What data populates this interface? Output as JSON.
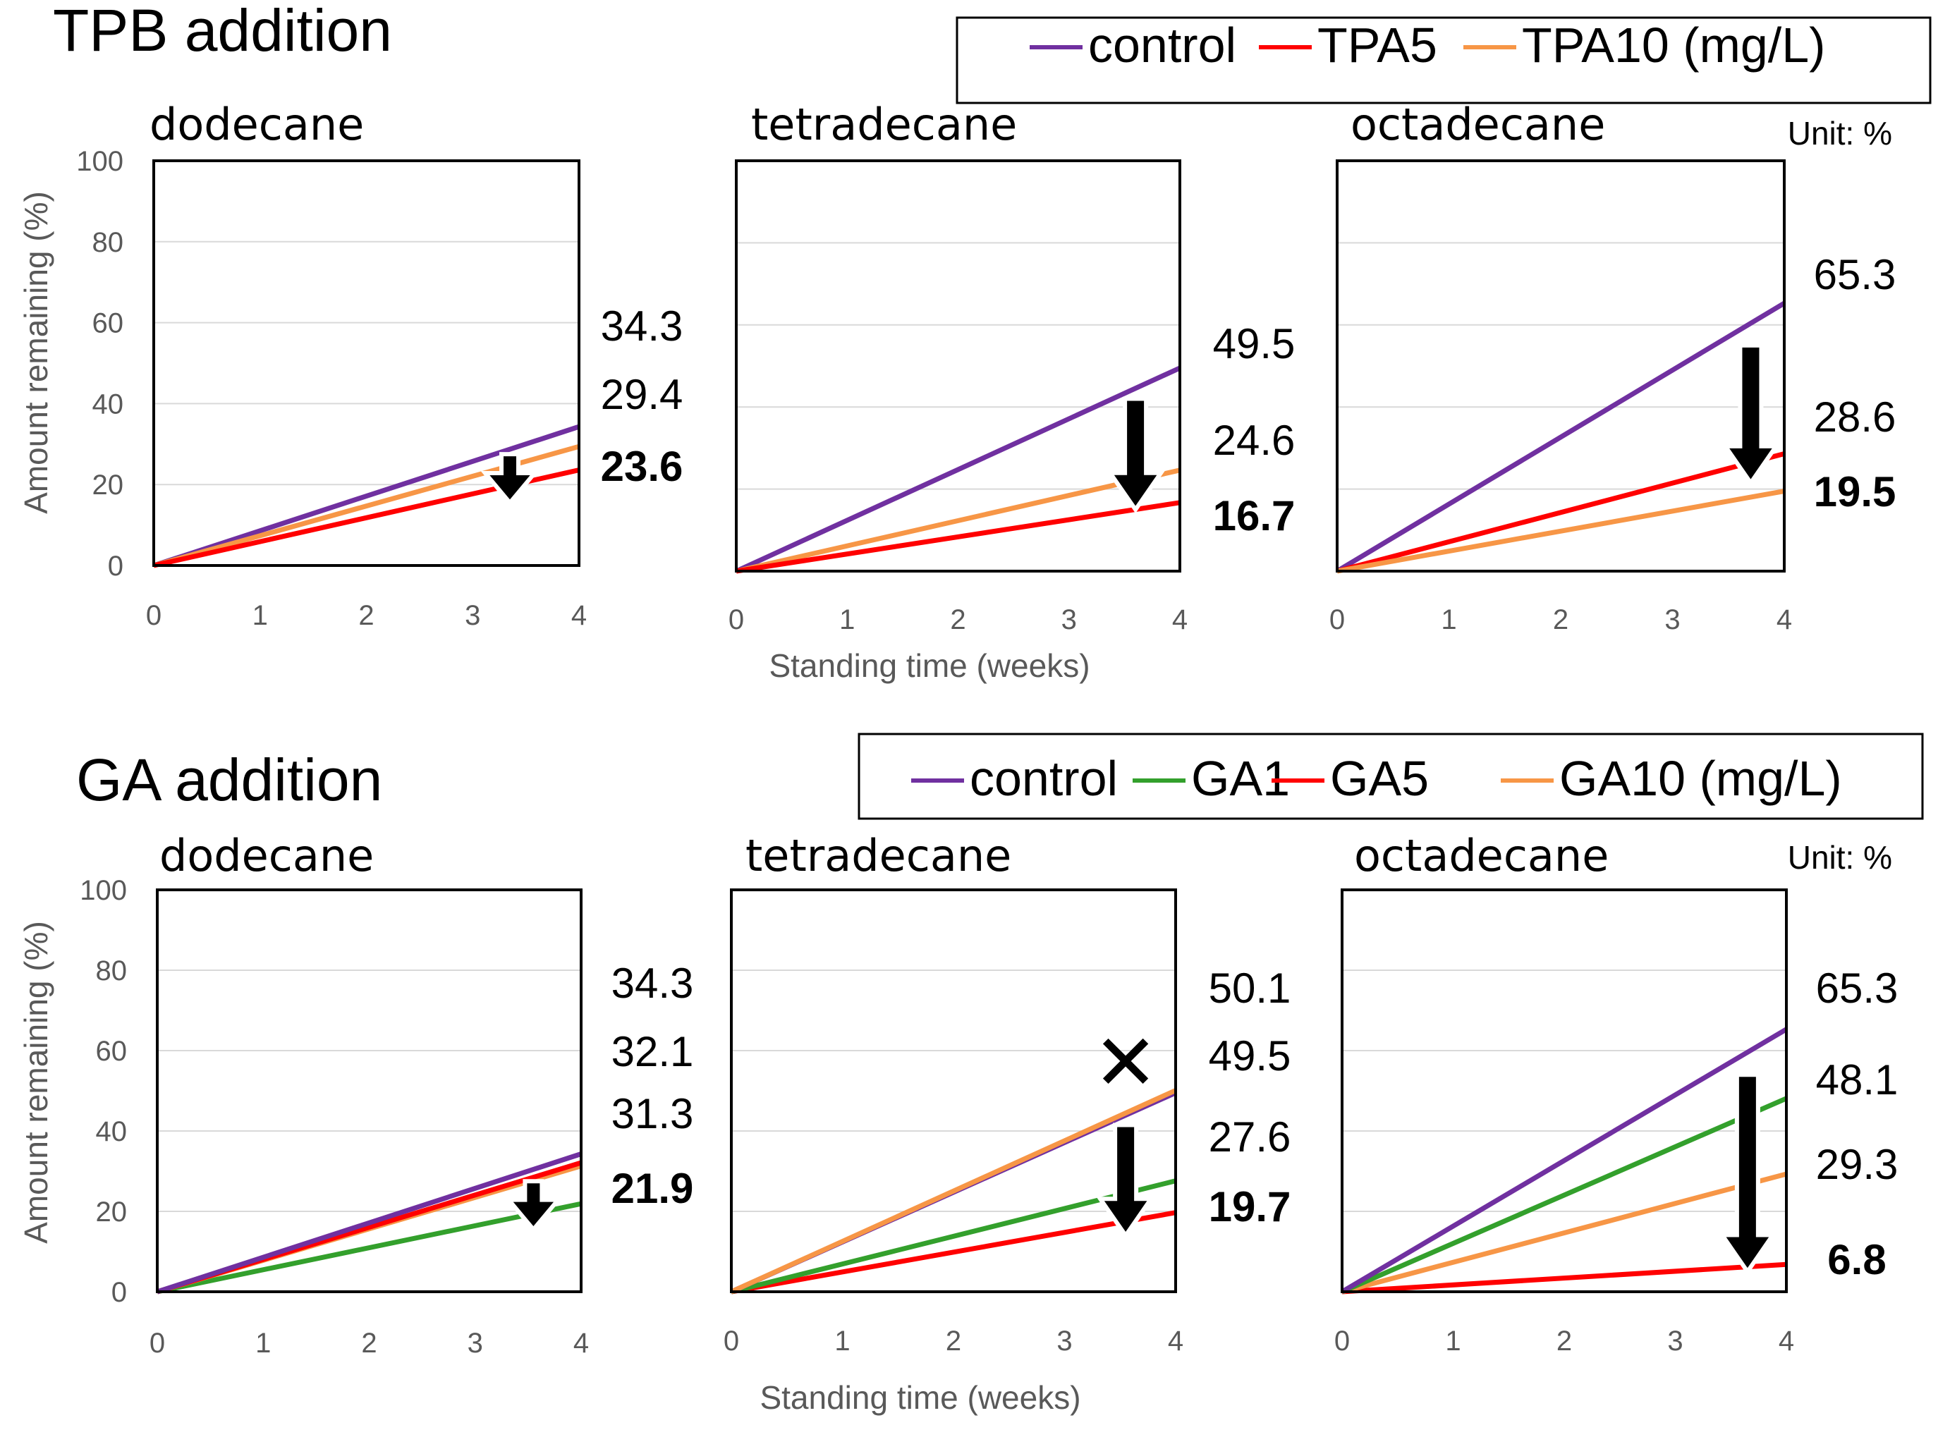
{
  "chart_data": [
    {
      "section": "TPB addition",
      "legend": [
        {
          "name": "control",
          "color": "#7030A0"
        },
        {
          "name": "TPA5",
          "color": "#FF0000"
        },
        {
          "name": "TPA10 (mg/L)",
          "color": "#F79646"
        }
      ],
      "unit_note": "Unit: %",
      "ylabel": "Amount remaining (%)",
      "xlabel": "Standing time (weeks)",
      "x": [
        0,
        4
      ],
      "xticks": [
        0,
        1,
        2,
        3,
        4
      ],
      "yticks": [
        0,
        20,
        40,
        60,
        80,
        100
      ],
      "ylim": [
        0,
        100
      ],
      "charts": [
        {
          "type": "line",
          "title": "dodecane",
          "series": [
            {
              "name": "control",
              "values": [
                0,
                34.3
              ],
              "color": "#7030A0"
            },
            {
              "name": "TPA10",
              "values": [
                0,
                29.4
              ],
              "color": "#F79646"
            },
            {
              "name": "TPA5",
              "values": [
                0,
                23.6
              ],
              "color": "#FF0000"
            }
          ],
          "value_labels": [
            {
              "text": "34.3",
              "bold": false
            },
            {
              "text": "29.4",
              "bold": false
            },
            {
              "text": "23.6",
              "bold": true
            }
          ],
          "arrow": {
            "x": 3.35,
            "from": 27.5,
            "to": 15.5,
            "size": "small"
          }
        },
        {
          "type": "line",
          "title": "tetradecane",
          "series": [
            {
              "name": "control",
              "values": [
                0,
                49.5
              ],
              "color": "#7030A0"
            },
            {
              "name": "TPA10",
              "values": [
                0,
                24.6
              ],
              "color": "#F79646"
            },
            {
              "name": "TPA5",
              "values": [
                0,
                16.7
              ],
              "color": "#FF0000"
            }
          ],
          "value_labels": [
            {
              "text": "49.5",
              "bold": false
            },
            {
              "text": "24.6",
              "bold": false
            },
            {
              "text": "16.7",
              "bold": true
            }
          ],
          "arrow": {
            "x": 3.6,
            "from": 42,
            "to": 15,
            "size": "large"
          }
        },
        {
          "type": "line",
          "title": "octadecane",
          "series": [
            {
              "name": "control",
              "values": [
                0,
                65.3
              ],
              "color": "#7030A0"
            },
            {
              "name": "TPA5",
              "values": [
                0,
                28.6
              ],
              "color": "#FF0000"
            },
            {
              "name": "TPA10",
              "values": [
                0,
                19.5
              ],
              "color": "#F79646"
            }
          ],
          "value_labels": [
            {
              "text": "65.3",
              "bold": false
            },
            {
              "text": "28.6",
              "bold": false
            },
            {
              "text": "19.5",
              "bold": true
            }
          ],
          "arrow": {
            "x": 3.7,
            "from": 55,
            "to": 21.5,
            "size": "large"
          }
        }
      ]
    },
    {
      "section": "GA addition",
      "legend": [
        {
          "name": "control",
          "color": "#7030A0"
        },
        {
          "name": "GA1",
          "color": "#33A02C"
        },
        {
          "name": "GA5",
          "color": "#FF0000"
        },
        {
          "name": "GA10 (mg/L)",
          "color": "#F79646"
        }
      ],
      "unit_note": "Unit: %",
      "ylabel": "Amount remaining (%)",
      "xlabel": "Standing time (weeks)",
      "x": [
        0,
        4
      ],
      "xticks": [
        0,
        1,
        2,
        3,
        4
      ],
      "yticks": [
        0,
        20,
        40,
        60,
        80,
        100
      ],
      "ylim": [
        0,
        100
      ],
      "charts": [
        {
          "type": "line",
          "title": "dodecane",
          "series": [
            {
              "name": "GA1",
              "values": [
                0,
                21.9
              ],
              "color": "#33A02C"
            },
            {
              "name": "GA10",
              "values": [
                0,
                31.3
              ],
              "color": "#F79646"
            },
            {
              "name": "GA5",
              "values": [
                0,
                32.1
              ],
              "color": "#FF0000"
            },
            {
              "name": "control",
              "values": [
                0,
                34.3
              ],
              "color": "#7030A0"
            }
          ],
          "value_labels": [
            {
              "text": "34.3",
              "bold": false
            },
            {
              "text": "32.1",
              "bold": false
            },
            {
              "text": "31.3",
              "bold": false
            },
            {
              "text": "21.9",
              "bold": true
            }
          ],
          "arrow": {
            "x": 3.55,
            "from": 27.5,
            "to": 15.5,
            "size": "small"
          }
        },
        {
          "type": "line",
          "title": "tetradecane",
          "series": [
            {
              "name": "GA5",
              "values": [
                0,
                19.7
              ],
              "color": "#FF0000"
            },
            {
              "name": "GA1",
              "values": [
                0,
                27.6
              ],
              "color": "#33A02C"
            },
            {
              "name": "control",
              "values": [
                0,
                49.5
              ],
              "color": "#7030A0"
            },
            {
              "name": "GA10",
              "values": [
                0,
                50.1
              ],
              "color": "#F79646"
            }
          ],
          "value_labels": [
            {
              "text": "50.1",
              "bold": false
            },
            {
              "text": "49.5",
              "bold": false
            },
            {
              "text": "27.6",
              "bold": false
            },
            {
              "text": "19.7",
              "bold": true
            }
          ],
          "arrow": {
            "x": 3.55,
            "from": 41.5,
            "to": 14,
            "size": "large"
          },
          "cross": {
            "text": "✕",
            "x": 3.55,
            "y": 57
          }
        },
        {
          "type": "line",
          "title": "octadecane",
          "series": [
            {
              "name": "GA5",
              "values": [
                0,
                6.8
              ],
              "color": "#FF0000"
            },
            {
              "name": "GA10",
              "values": [
                0,
                29.3
              ],
              "color": "#F79646"
            },
            {
              "name": "GA1",
              "values": [
                0,
                48.1
              ],
              "color": "#33A02C"
            },
            {
              "name": "control",
              "values": [
                0,
                65.3
              ],
              "color": "#7030A0"
            }
          ],
          "value_labels": [
            {
              "text": "65.3",
              "bold": false
            },
            {
              "text": "48.1",
              "bold": false
            },
            {
              "text": "29.3",
              "bold": false
            },
            {
              "text": "6.8",
              "bold": true
            }
          ],
          "arrow": {
            "x": 3.65,
            "from": 54,
            "to": 5,
            "size": "large"
          }
        }
      ]
    }
  ]
}
